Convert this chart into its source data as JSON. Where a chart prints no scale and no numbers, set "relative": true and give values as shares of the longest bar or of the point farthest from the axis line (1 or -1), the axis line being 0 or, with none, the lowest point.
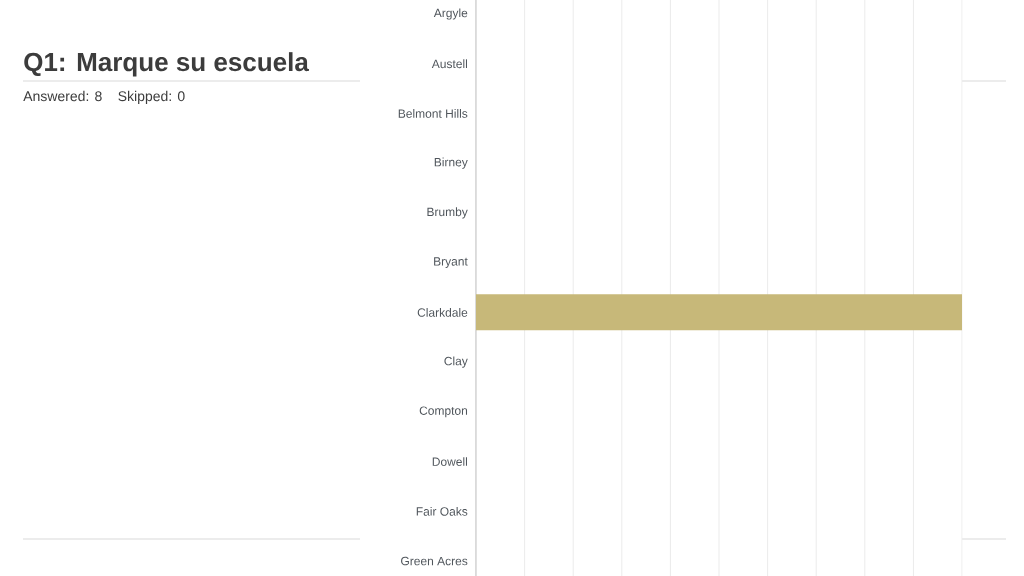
{
  "chart_data": {
    "type": "bar",
    "orientation": "horizontal",
    "relative": true,
    "title": "Q1: Marque su escuela",
    "annotations": [
      "Answered: 8",
      "Skipped: 0"
    ],
    "categories": [
      "Argyle",
      "Austell",
      "Belmont Hills",
      "Birney",
      "Brumby",
      "Bryant",
      "Clarkdale",
      "Clay",
      "Compton",
      "Dowell",
      "Fair Oaks",
      "Green Acres"
    ],
    "values": [
      0,
      0,
      0,
      0,
      0,
      0,
      1,
      0,
      0,
      0,
      0,
      0
    ],
    "color": "#c7b879",
    "grid": "x"
  }
}
